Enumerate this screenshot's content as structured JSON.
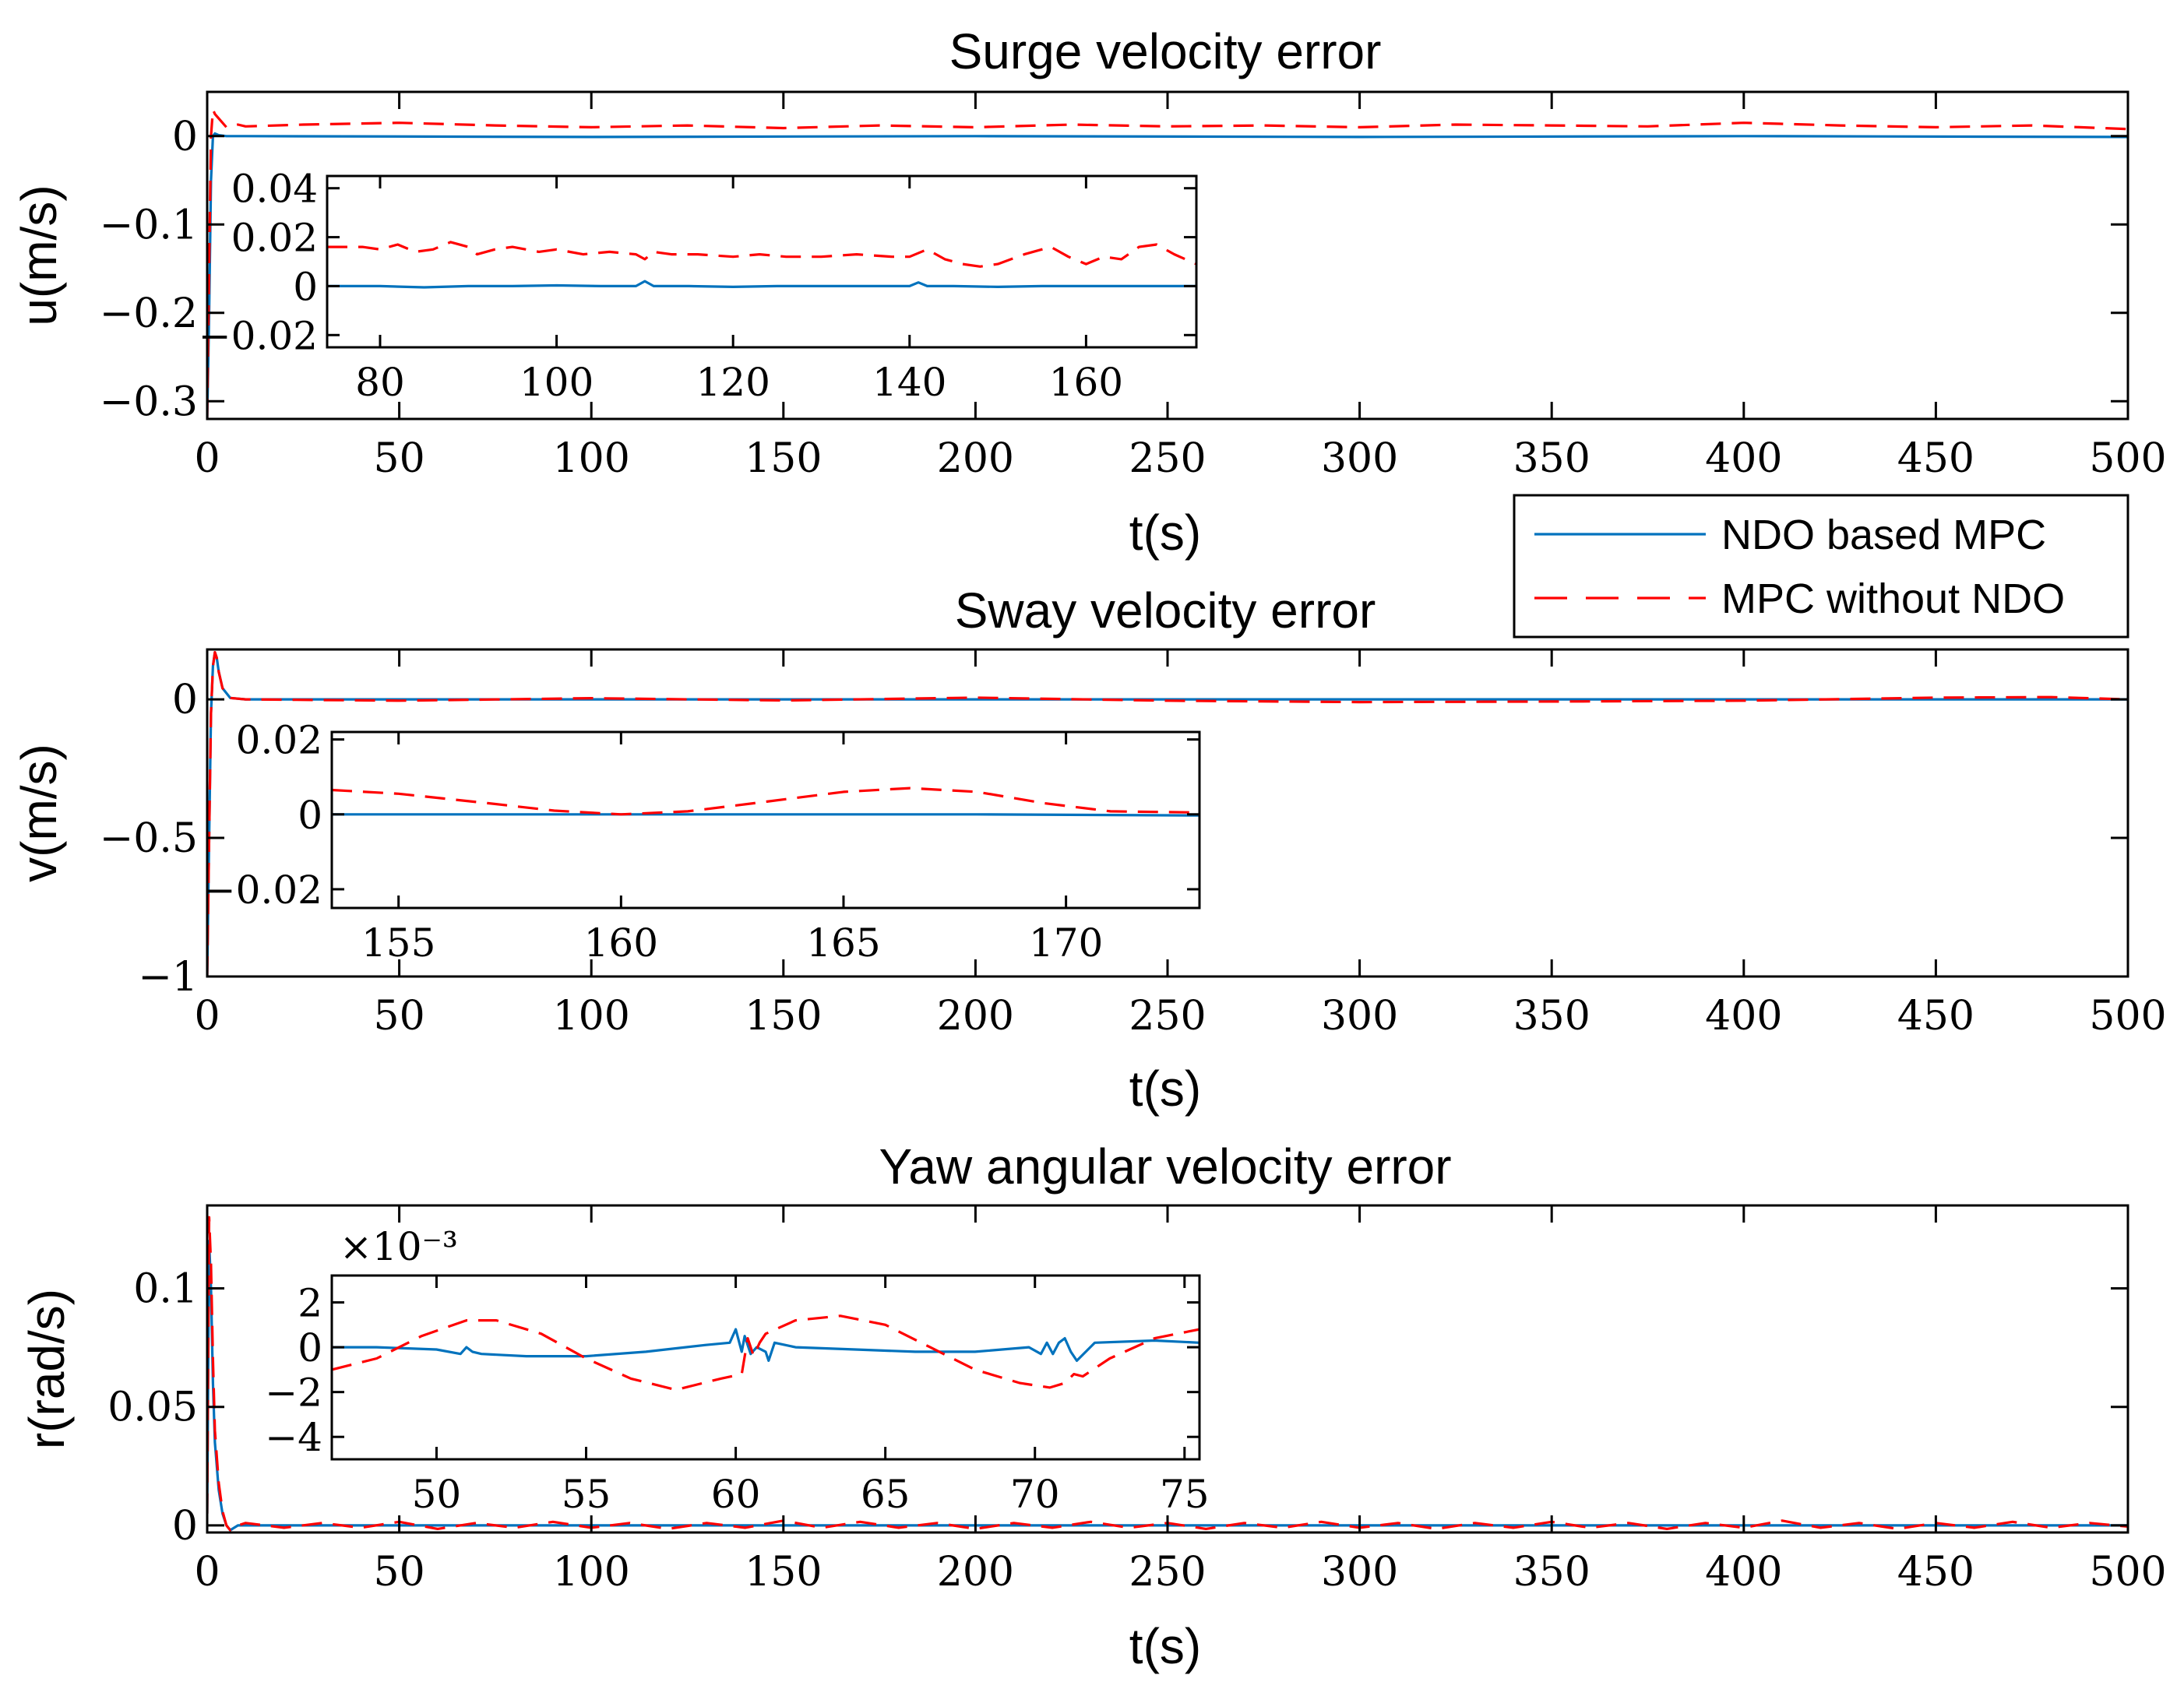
{
  "legend": {
    "entries": [
      {
        "label": "NDO based MPC",
        "color": "#0072BD",
        "style": "solid"
      },
      {
        "label": "MPC without NDO",
        "color": "#FF0000",
        "style": "dashed"
      }
    ]
  },
  "chart_data": [
    {
      "id": "surge",
      "type": "line",
      "title": "Surge velocity error",
      "xlabel": "t(s)",
      "ylabel": "u(m/s)",
      "xlim": [
        0,
        500
      ],
      "ylim": [
        -0.32,
        0.05
      ],
      "xticks": [
        0,
        50,
        100,
        150,
        200,
        250,
        300,
        350,
        400,
        450,
        500
      ],
      "xtick_labels": [
        "0",
        "50",
        "100",
        "150",
        "200",
        "250",
        "300",
        "350",
        "400",
        "450",
        "500"
      ],
      "yticks": [
        -0.3,
        -0.2,
        -0.1,
        0
      ],
      "ytick_labels": [
        "−0.3",
        "−0.2",
        "−0.1",
        "0"
      ],
      "series": [
        {
          "name": "NDO based MPC",
          "kind": "blue",
          "x": [
            0,
            0.5,
            1,
            1.5,
            2,
            3,
            5,
            10,
            100,
            200,
            300,
            400,
            500
          ],
          "y": [
            -0.32,
            -0.2,
            -0.05,
            0.0,
            0.003,
            0.001,
            0.0,
            0.0,
            -0.001,
            0.0,
            -0.001,
            0.0,
            -0.001
          ]
        },
        {
          "name": "MPC without NDO",
          "kind": "red",
          "x": [
            0,
            0.5,
            1,
            1.5,
            2,
            3,
            5,
            8,
            10,
            25,
            50,
            75,
            100,
            125,
            150,
            175,
            200,
            225,
            250,
            275,
            300,
            325,
            350,
            375,
            400,
            425,
            450,
            475,
            500
          ],
          "y": [
            -0.32,
            -0.15,
            0.0,
            0.03,
            0.025,
            0.02,
            0.01,
            0.013,
            0.011,
            0.013,
            0.015,
            0.012,
            0.01,
            0.012,
            0.009,
            0.012,
            0.01,
            0.013,
            0.011,
            0.012,
            0.01,
            0.013,
            0.012,
            0.011,
            0.015,
            0.012,
            0.01,
            0.012,
            0.008
          ]
        }
      ],
      "inset": {
        "xlim": [
          74,
          172.5
        ],
        "ylim": [
          -0.025,
          0.045
        ],
        "xticks": [
          80,
          100,
          120,
          140,
          160
        ],
        "xtick_labels": [
          "80",
          "100",
          "120",
          "140",
          "160"
        ],
        "yticks": [
          -0.02,
          0,
          0.02,
          0.04
        ],
        "ytick_labels": [
          "−0.02",
          "0",
          "0.02",
          "0.04"
        ],
        "series": [
          {
            "name": "NDO based MPC",
            "kind": "blue",
            "x": [
              74,
              80,
              85,
              90,
              95,
              100,
              105,
              109,
              110,
              111,
              115,
              120,
              125,
              130,
              135,
              140,
              141,
              142,
              145,
              150,
              155,
              160,
              165,
              170,
              172.5
            ],
            "y": [
              0.0,
              0.0,
              -0.0005,
              0.0,
              0.0,
              0.0003,
              0.0,
              0.0,
              0.002,
              0.0,
              0.0,
              -0.0003,
              0.0,
              0.0,
              0.0,
              0.0,
              0.0015,
              0.0,
              0.0,
              -0.0003,
              0.0,
              0.0,
              0.0,
              0.0,
              0.0
            ]
          },
          {
            "name": "MPC without NDO",
            "kind": "red",
            "x": [
              74,
              78,
              80,
              82,
              84,
              86,
              88,
              90,
              91,
              93,
              95,
              98,
              100,
              103,
              106,
              109,
              110,
              111,
              113,
              116,
              120,
              123,
              126,
              130,
              134,
              138,
              140,
              142,
              144,
              146,
              148,
              150,
              153,
              156,
              158,
              160,
              162,
              164,
              166,
              168,
              170,
              172.5
            ],
            "y": [
              0.016,
              0.016,
              0.015,
              0.017,
              0.014,
              0.015,
              0.018,
              0.016,
              0.013,
              0.015,
              0.016,
              0.014,
              0.015,
              0.013,
              0.014,
              0.013,
              0.011,
              0.014,
              0.013,
              0.013,
              0.012,
              0.013,
              0.012,
              0.012,
              0.013,
              0.012,
              0.012,
              0.015,
              0.011,
              0.009,
              0.008,
              0.009,
              0.013,
              0.016,
              0.012,
              0.009,
              0.012,
              0.011,
              0.016,
              0.017,
              0.013,
              0.009
            ]
          }
        ]
      }
    },
    {
      "id": "sway",
      "type": "line",
      "title": "Sway velocity error",
      "xlabel": "t(s)",
      "ylabel": "v(m/s)",
      "xlim": [
        0,
        500
      ],
      "ylim": [
        -1.0,
        0.18
      ],
      "xticks": [
        0,
        50,
        100,
        150,
        200,
        250,
        300,
        350,
        400,
        450,
        500
      ],
      "xtick_labels": [
        "0",
        "50",
        "100",
        "150",
        "200",
        "250",
        "300",
        "350",
        "400",
        "450",
        "500"
      ],
      "yticks": [
        -1,
        -0.5,
        0
      ],
      "ytick_labels": [
        "−1",
        "−0.5",
        "0"
      ],
      "series": [
        {
          "name": "NDO based MPC",
          "kind": "blue",
          "x": [
            0,
            0.5,
            1,
            1.5,
            2,
            2.5,
            3,
            4,
            6,
            10,
            100,
            200,
            300,
            400,
            500
          ],
          "y": [
            -1.0,
            -0.5,
            -0.05,
            0.12,
            0.17,
            0.15,
            0.1,
            0.04,
            0.005,
            0.0,
            0.0,
            0.0,
            0.0,
            0.0,
            0.0
          ]
        },
        {
          "name": "MPC without NDO",
          "kind": "red",
          "x": [
            0,
            0.5,
            1,
            1.5,
            2,
            2.5,
            3,
            4,
            6,
            10,
            50,
            100,
            150,
            200,
            250,
            300,
            350,
            400,
            450,
            480,
            500
          ],
          "y": [
            -1.0,
            -0.5,
            -0.05,
            0.12,
            0.17,
            0.15,
            0.1,
            0.04,
            0.005,
            0.0,
            -0.005,
            0.004,
            -0.004,
            0.006,
            -0.005,
            -0.01,
            -0.008,
            -0.005,
            0.006,
            0.008,
            0.0
          ]
        }
      ],
      "inset": {
        "xlim": [
          153.5,
          173
        ],
        "ylim": [
          -0.025,
          0.022
        ],
        "xticks": [
          155,
          160,
          165,
          170
        ],
        "xtick_labels": [
          "155",
          "160",
          "165",
          "170"
        ],
        "yticks": [
          -0.02,
          0,
          0.02
        ],
        "ytick_labels": [
          "−0.02",
          "0",
          "0.02"
        ],
        "series": [
          {
            "name": "NDO based MPC",
            "kind": "blue",
            "x": [
              153.5,
              158,
              163,
              168,
              173
            ],
            "y": [
              0.0,
              0.0,
              0.0,
              0.0,
              -0.0003
            ]
          },
          {
            "name": "MPC without NDO",
            "kind": "red",
            "x": [
              153.5,
              155,
              157,
              158.5,
              160,
              161.5,
              163,
              165,
              166.5,
              168,
              169.5,
              171,
              173
            ],
            "y": [
              0.0065,
              0.0055,
              0.003,
              0.001,
              0.0,
              0.0008,
              0.003,
              0.006,
              0.007,
              0.006,
              0.003,
              0.0008,
              0.0005
            ]
          }
        ]
      }
    },
    {
      "id": "yaw",
      "type": "line",
      "title": "Yaw angular velocity error",
      "xlabel": "t(s)",
      "ylabel": "r(rad/s)",
      "xlim": [
        0,
        500
      ],
      "ylim": [
        -0.003,
        0.135
      ],
      "xticks": [
        0,
        50,
        100,
        150,
        200,
        250,
        300,
        350,
        400,
        450,
        500
      ],
      "xtick_labels": [
        "0",
        "50",
        "100",
        "150",
        "200",
        "250",
        "300",
        "350",
        "400",
        "450",
        "500"
      ],
      "yticks": [
        0,
        0.05,
        0.1
      ],
      "ytick_labels": [
        "0",
        "0.05",
        "0.1"
      ],
      "series": [
        {
          "name": "NDO based MPC",
          "kind": "blue",
          "x": [
            0,
            0.5,
            1,
            1.5,
            2,
            3,
            4,
            5,
            6,
            8,
            10,
            100,
            200,
            300,
            400,
            500
          ],
          "y": [
            0.005,
            0.12,
            0.1,
            0.06,
            0.035,
            0.015,
            0.005,
            0.0,
            -0.002,
            0.0,
            0.0,
            0.0,
            0.0,
            0.0,
            0.0,
            0.0
          ]
        },
        {
          "name": "MPC without NDO",
          "kind": "red",
          "x": [
            0,
            0.5,
            1,
            1.5,
            2,
            3,
            4,
            5,
            6,
            8,
            10,
            20,
            30,
            40,
            50,
            60,
            70,
            80,
            90,
            100,
            110,
            120,
            130,
            140,
            150,
            160,
            170,
            180,
            190,
            200,
            210,
            220,
            230,
            240,
            250,
            260,
            270,
            280,
            290,
            300,
            310,
            320,
            330,
            340,
            350,
            360,
            370,
            380,
            390,
            400,
            410,
            420,
            430,
            440,
            450,
            460,
            470,
            480,
            490,
            500
          ],
          "y": [
            0.005,
            0.13,
            0.11,
            0.07,
            0.04,
            0.018,
            0.006,
            0.0,
            -0.002,
            0.0,
            0.001,
            -0.001,
            0.001,
            -0.001,
            0.0015,
            -0.0015,
            0.001,
            -0.001,
            0.0015,
            -0.001,
            0.001,
            -0.0015,
            0.001,
            -0.001,
            0.002,
            -0.001,
            0.0015,
            -0.001,
            0.001,
            -0.0015,
            0.001,
            -0.001,
            0.0015,
            -0.001,
            0.001,
            -0.0015,
            0.001,
            -0.001,
            0.0015,
            -0.001,
            0.001,
            -0.0015,
            0.001,
            -0.001,
            0.0015,
            -0.001,
            0.001,
            -0.0015,
            0.001,
            -0.001,
            0.002,
            -0.001,
            0.001,
            -0.0015,
            0.001,
            -0.001,
            0.0015,
            -0.001,
            0.001,
            -0.0005
          ]
        }
      ],
      "inset": {
        "xlim": [
          46.5,
          75.5
        ],
        "ylim": [
          -0.005,
          0.0032
        ],
        "multiplier": "×10⁻³",
        "xticks": [
          50,
          55,
          60,
          65,
          70,
          75
        ],
        "xtick_labels": [
          "50",
          "55",
          "60",
          "65",
          "70",
          "75"
        ],
        "yticks": [
          -0.004,
          -0.002,
          0,
          0.002
        ],
        "ytick_labels": [
          "−4",
          "−2",
          "0",
          "2"
        ],
        "series": [
          {
            "name": "NDO based MPC",
            "kind": "blue",
            "x": [
              46.5,
              48,
              50,
              50.8,
              51,
              51.2,
              51.5,
              53,
              55,
              57,
              59,
              59.8,
              60,
              60.2,
              60.3,
              60.5,
              60.7,
              61,
              61.1,
              61.3,
              62,
              64,
              66,
              68,
              69.8,
              70.2,
              70.4,
              70.6,
              70.8,
              71,
              71.2,
              71.4,
              72,
              74,
              75.5
            ],
            "y": [
              0.0,
              0.0,
              -0.0001,
              -0.0003,
              0.0,
              -0.0002,
              -0.0003,
              -0.0004,
              -0.0004,
              -0.0002,
              0.0001,
              0.0002,
              0.0008,
              -0.0002,
              0.0005,
              -0.0003,
              0.0,
              -0.0002,
              -0.0006,
              0.0002,
              0.0,
              -0.0001,
              -0.0002,
              -0.0002,
              0.0,
              -0.0003,
              0.0002,
              -0.0003,
              0.0002,
              0.0004,
              -0.0002,
              -0.0006,
              0.0002,
              0.0003,
              0.0002
            ]
          },
          {
            "name": "MPC without NDO",
            "kind": "red",
            "x": [
              46.5,
              48,
              49.5,
              51,
              52,
              53.5,
              55,
              56.5,
              58,
              59.5,
              60.2,
              60.4,
              60.6,
              60.8,
              61,
              62,
              63.5,
              65,
              66.5,
              68,
              69.5,
              70.5,
              71,
              71.3,
              71.6,
              72.5,
              74,
              75.5
            ],
            "y": [
              -0.001,
              -0.0005,
              0.0005,
              0.0012,
              0.0012,
              0.0006,
              -0.0005,
              -0.0014,
              -0.0019,
              -0.0014,
              -0.0012,
              0.0004,
              -0.0004,
              0.0002,
              0.0006,
              0.0012,
              0.0014,
              0.001,
              0.0,
              -0.001,
              -0.0016,
              -0.0018,
              -0.0016,
              -0.0012,
              -0.0013,
              -0.0005,
              0.0004,
              0.0008
            ]
          }
        ]
      }
    }
  ]
}
